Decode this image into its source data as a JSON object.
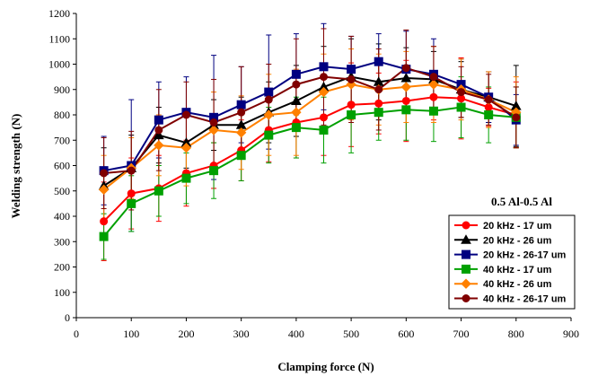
{
  "chart_data": {
    "type": "line",
    "title": "",
    "xlabel": "Clamping force (N)",
    "ylabel": "Welding strength (N)",
    "xlim": [
      0,
      900
    ],
    "ylim": [
      0,
      1200
    ],
    "x_ticks": [
      0,
      100,
      200,
      300,
      400,
      500,
      600,
      700,
      800,
      900
    ],
    "y_ticks": [
      0,
      100,
      200,
      300,
      400,
      500,
      600,
      700,
      800,
      900,
      1000,
      1100,
      1200
    ],
    "grid": false,
    "annotation": "0.5 Al-0.5 Al",
    "legend_position": "bottom-right",
    "x": [
      50,
      100,
      150,
      200,
      250,
      300,
      350,
      400,
      450,
      500,
      550,
      600,
      650,
      700,
      750,
      800
    ],
    "series": [
      {
        "name": "20 kHz - 17 um",
        "color": "#ff0000",
        "marker": "circle",
        "values": [
          380,
          490,
          510,
          570,
          600,
          660,
          740,
          770,
          790,
          840,
          845,
          855,
          870,
          865,
          830,
          800
        ],
        "errors": [
          155,
          140,
          130,
          130,
          90,
          120,
          125,
          140,
          150,
          165,
          120,
          160,
          90,
          160,
          75,
          130
        ]
      },
      {
        "name": "20 kHz - 26 um",
        "color": "#000000",
        "marker": "triangle",
        "values": [
          520,
          590,
          720,
          690,
          760,
          760,
          810,
          855,
          910,
          950,
          930,
          945,
          940,
          900,
          870,
          835
        ],
        "errors": [
          150,
          130,
          110,
          100,
          100,
          110,
          120,
          140,
          160,
          150,
          150,
          120,
          110,
          110,
          100,
          160
        ]
      },
      {
        "name": "20 kHz - 26-17 um",
        "color": "#000080",
        "marker": "square",
        "values": [
          580,
          600,
          780,
          810,
          790,
          840,
          890,
          960,
          990,
          980,
          1010,
          980,
          960,
          920,
          870,
          780
        ],
        "errors": [
          135,
          260,
          150,
          140,
          245,
          150,
          225,
          160,
          170,
          130,
          110,
          150,
          140,
          100,
          100,
          100
        ]
      },
      {
        "name": "40 kHz - 17 um",
        "color": "#00a000",
        "marker": "square",
        "values": [
          320,
          450,
          500,
          550,
          580,
          640,
          720,
          750,
          740,
          800,
          810,
          820,
          815,
          830,
          800,
          790
        ],
        "errors": [
          90,
          110,
          100,
          100,
          110,
          100,
          110,
          120,
          130,
          150,
          110,
          120,
          120,
          120,
          110,
          120
        ]
      },
      {
        "name": "40 kHz - 26 um",
        "color": "#ff8000",
        "marker": "diamond",
        "values": [
          505,
          590,
          680,
          670,
          740,
          730,
          800,
          810,
          890,
          920,
          900,
          910,
          920,
          900,
          860,
          810
        ],
        "errors": [
          135,
          120,
          120,
          150,
          150,
          145,
          160,
          170,
          150,
          140,
          140,
          140,
          150,
          120,
          110,
          140
        ]
      },
      {
        "name": "40 kHz - 26-17 um",
        "color": "#800000",
        "marker": "circle",
        "values": [
          570,
          580,
          740,
          800,
          770,
          810,
          860,
          920,
          950,
          940,
          900,
          985,
          950,
          890,
          860,
          790
        ],
        "errors": [
          140,
          155,
          160,
          130,
          170,
          180,
          140,
          180,
          190,
          170,
          160,
          150,
          120,
          100,
          100,
          120
        ]
      }
    ]
  }
}
